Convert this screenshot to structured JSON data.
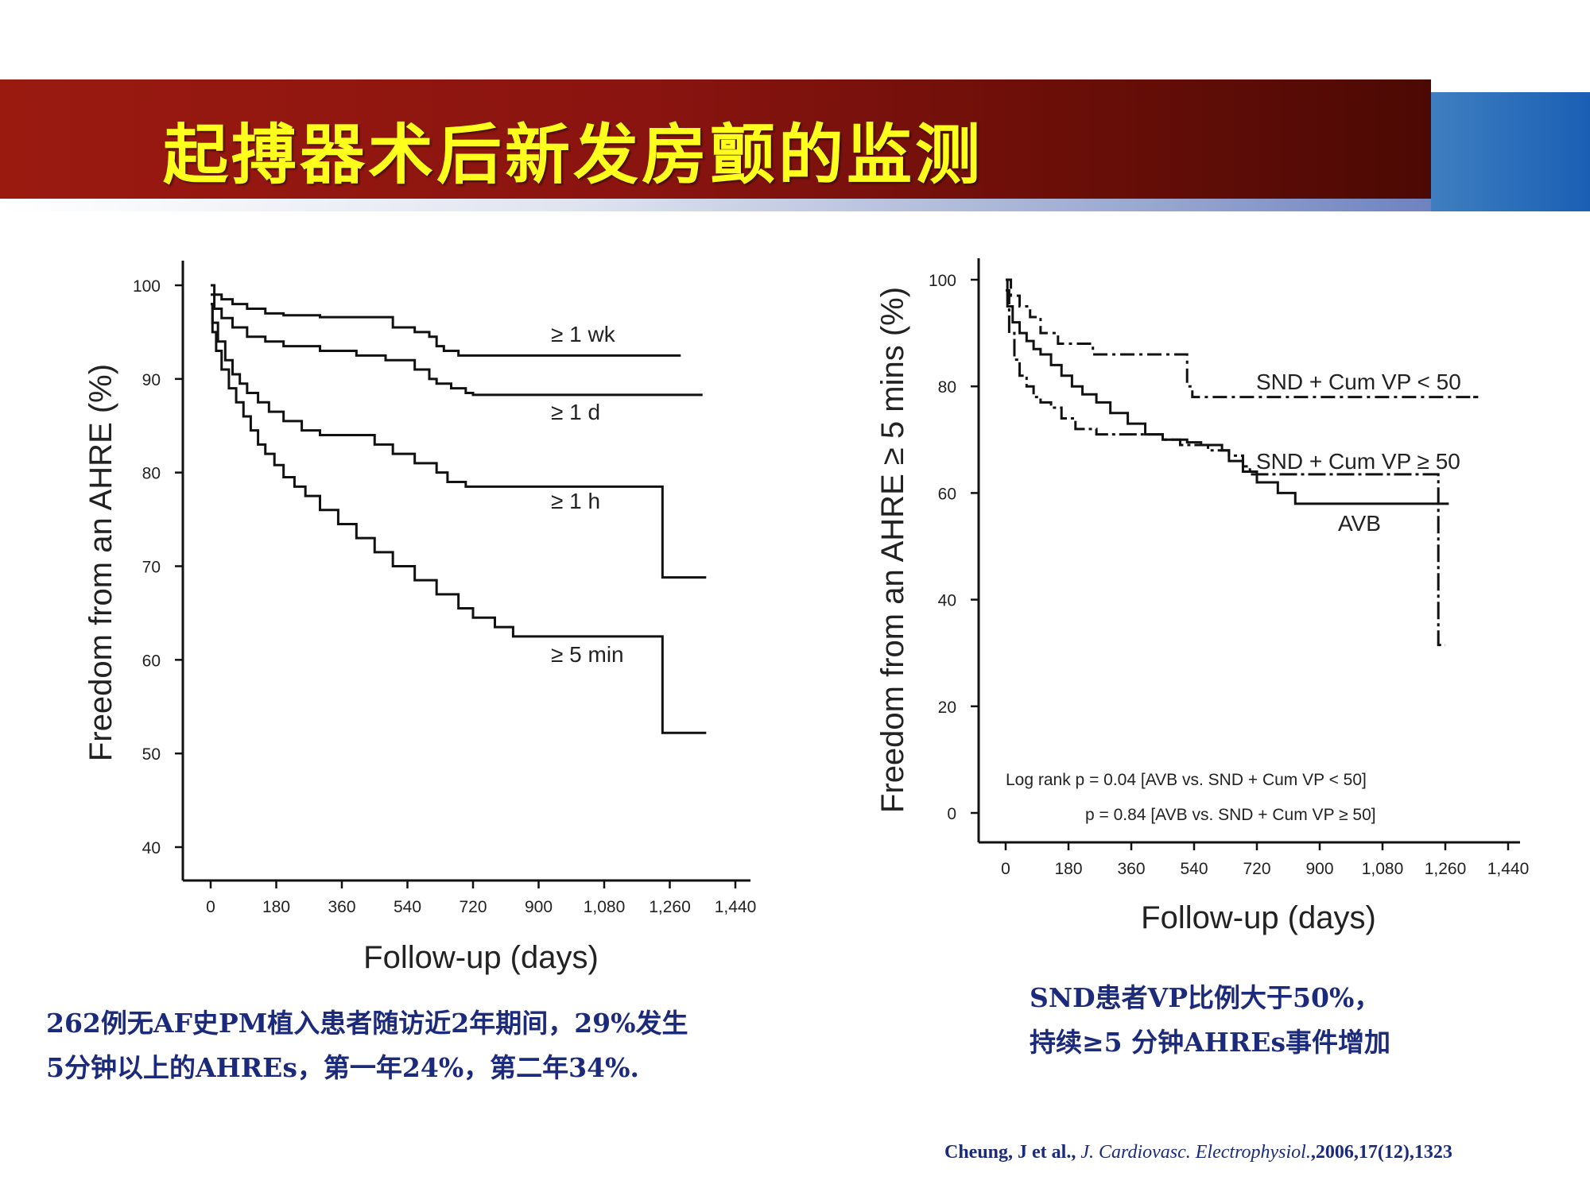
{
  "slide": {
    "title": "起搏器术后新发房颤的监测",
    "caption_left": [
      "262例无AF史PM植入患者随访近2年期间，29%发生",
      "5分钟以上的AHREs，第一年24%，第二年34%."
    ],
    "caption_right": [
      "SND患者VP比例大于50%，",
      "持续≥5 分钟AHREs事件增加"
    ],
    "citation": {
      "authors": "Cheung, J et al.,",
      "journal": "J. Cardiovasc. Electrophysiol.",
      "details": ",2006,17(12),1323"
    },
    "colors": {
      "title_band": "#8a1410",
      "title_text": "#ffff1e",
      "accent_blue": "#1a5fb4",
      "caption": "#1b2a7a",
      "lines": "#111111"
    }
  },
  "chart_data": [
    {
      "type": "line",
      "title": "",
      "xlabel": "Follow-up (days)",
      "ylabel": "Freedom from an AHRE (%)",
      "xlim": [
        0,
        1440
      ],
      "ylim": [
        40,
        100
      ],
      "x_ticks": [
        "0",
        "180",
        "360",
        "540",
        "720",
        "900",
        "1,080",
        "1,260",
        "1,440"
      ],
      "y_ticks": [
        "40",
        "50",
        "60",
        "70",
        "80",
        "90",
        "100"
      ],
      "series": [
        {
          "name": "≥ 1 wk",
          "x": [
            0,
            10,
            30,
            60,
            100,
            150,
            200,
            300,
            470,
            500,
            560,
            600,
            620,
            640,
            680,
            720,
            900,
            1290
          ],
          "y": [
            100,
            99,
            98.5,
            98,
            97.5,
            97,
            96.8,
            96.6,
            96.6,
            95.5,
            95,
            94.5,
            93.5,
            93,
            92.5,
            92.5,
            92.5,
            92.5
          ]
        },
        {
          "name": "≥ 1 d",
          "x": [
            0,
            10,
            30,
            60,
            100,
            150,
            200,
            300,
            400,
            480,
            560,
            600,
            620,
            660,
            700,
            720,
            900,
            1350
          ],
          "y": [
            99,
            97.5,
            96.5,
            95.5,
            94.5,
            94,
            93.5,
            93,
            92.5,
            92,
            91,
            90,
            89.5,
            89,
            88.5,
            88.3,
            88.3,
            88.3
          ]
        },
        {
          "name": "≥ 1 h",
          "x": [
            0,
            5,
            20,
            40,
            60,
            80,
            100,
            130,
            160,
            200,
            250,
            300,
            400,
            450,
            500,
            560,
            620,
            650,
            700,
            900,
            1240,
            1240,
            1360
          ],
          "y": [
            98,
            96,
            94,
            92,
            90.5,
            89.5,
            88.5,
            87.5,
            86.5,
            85.5,
            84.5,
            84,
            84,
            83,
            82,
            81,
            80,
            79,
            78.5,
            78.5,
            78.5,
            68.8,
            68.8
          ]
        },
        {
          "name": "≥ 5 min",
          "x": [
            0,
            5,
            15,
            30,
            50,
            70,
            90,
            110,
            130,
            150,
            175,
            200,
            230,
            260,
            300,
            350,
            400,
            450,
            500,
            560,
            620,
            680,
            720,
            780,
            830,
            900,
            1240,
            1240,
            1360
          ],
          "y": [
            98,
            95,
            93,
            91,
            89,
            87.5,
            86,
            84.5,
            83,
            82,
            80.8,
            79.5,
            78.5,
            77.5,
            76,
            74.5,
            73,
            71.5,
            70,
            68.5,
            67,
            65.5,
            64.5,
            63.5,
            62.5,
            62.5,
            62.5,
            52.2,
            52.2
          ]
        }
      ]
    },
    {
      "type": "line",
      "title": "",
      "xlabel": "Follow-up (days)",
      "ylabel": "Freedom from an AHRE ≥ 5 mins (%)",
      "xlim": [
        0,
        1440
      ],
      "ylim": [
        0,
        100
      ],
      "x_ticks": [
        "0",
        "180",
        "360",
        "540",
        "720",
        "900",
        "1,080",
        "1,260",
        "1,440"
      ],
      "y_ticks": [
        "0",
        "20",
        "40",
        "60",
        "80",
        "100"
      ],
      "annotations": [
        "Log rank p = 0.04 [AVB vs. SND + Cum VP < 50]",
        "p = 0.84 [AVB vs. SND + Cum VP ≥ 50]"
      ],
      "series": [
        {
          "name": "SND + Cum VP < 50",
          "style": "dash-dot",
          "x": [
            0,
            15,
            40,
            70,
            100,
            150,
            250,
            320,
            500,
            520,
            535,
            540,
            1360,
            1360,
            1340
          ],
          "y": [
            100,
            97,
            95,
            93,
            90,
            88,
            86,
            86,
            86,
            80,
            78,
            78,
            78,
            78,
            78
          ]
        },
        {
          "name": "SND + Cum VP ≥ 50",
          "style": "dash-dot",
          "x": [
            0,
            10,
            25,
            40,
            60,
            80,
            100,
            130,
            160,
            200,
            260,
            400,
            450,
            500,
            580,
            640,
            680,
            700,
            1240,
            1240,
            1260
          ],
          "y": [
            98,
            90,
            85,
            82,
            80,
            78,
            77,
            76,
            74,
            72,
            71,
            71,
            70,
            69,
            68,
            67,
            65,
            63.5,
            63.5,
            31.5,
            31.5
          ]
        },
        {
          "name": "AVB",
          "style": "solid",
          "x": [
            0,
            5,
            20,
            40,
            60,
            80,
            100,
            130,
            160,
            190,
            220,
            260,
            300,
            350,
            400,
            450,
            520,
            560,
            620,
            640,
            680,
            720,
            780,
            830,
            1270
          ],
          "y": [
            100,
            95,
            92,
            90,
            88.5,
            87,
            86,
            84,
            82,
            80,
            78.5,
            77,
            75,
            73,
            71,
            70,
            69.5,
            69,
            68,
            66,
            64,
            62,
            60,
            58,
            58
          ]
        }
      ]
    }
  ]
}
